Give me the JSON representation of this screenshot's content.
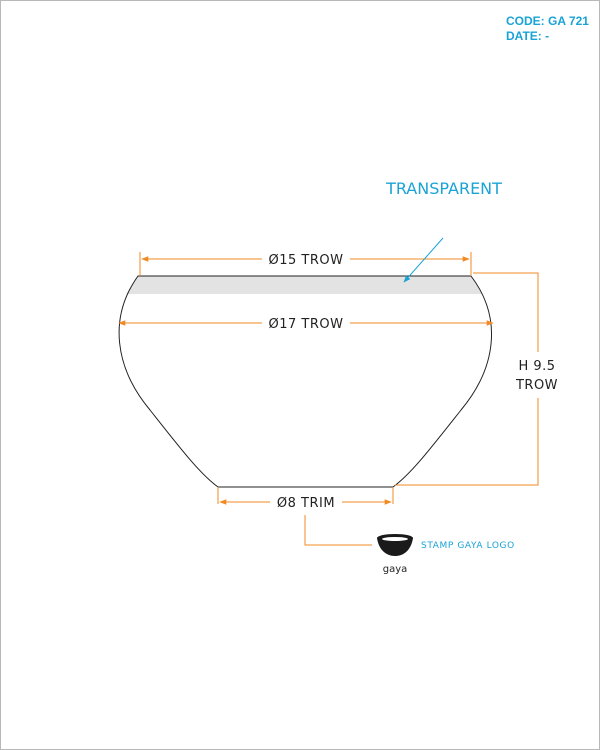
{
  "header": {
    "code": "CODE: GA 721",
    "date": "DATE: -"
  },
  "dimensions": {
    "top_diameter": "Ø15 TROW",
    "max_diameter": "Ø17 TROW",
    "base_diameter": "Ø8 TRIM",
    "height_line1": "H 9.5",
    "height_line2": "TROW"
  },
  "notes": {
    "transparent": "TRANSPARENT",
    "stamp": "STAMP GAYA LOGO"
  },
  "logo": {
    "wordmark": "gaya"
  },
  "colors": {
    "dimension_line": "#f08a24",
    "annotation": "#1aa3d6",
    "transparent_band": "#e3e3e3",
    "outline": "#222222"
  }
}
